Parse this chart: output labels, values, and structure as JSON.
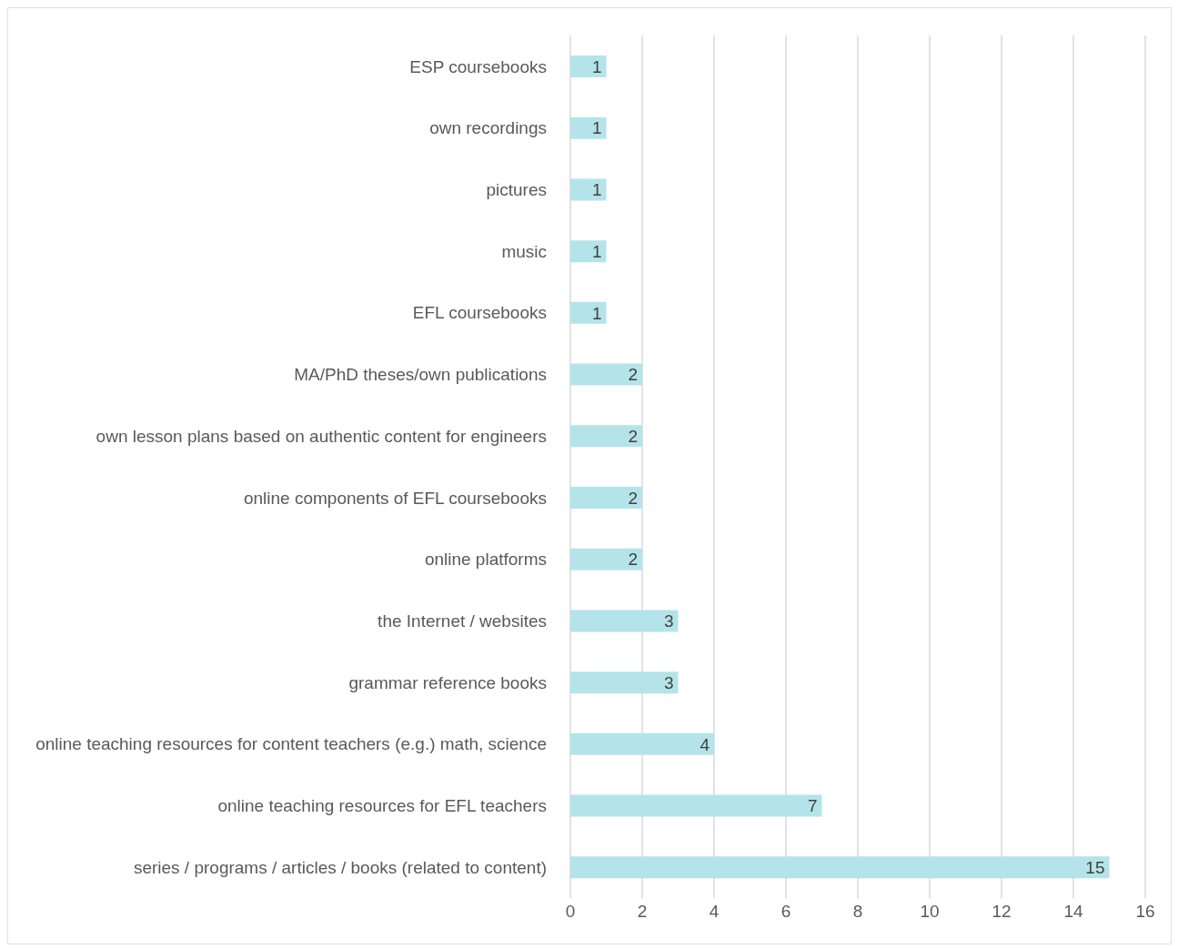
{
  "chart_data": {
    "type": "bar",
    "orientation": "horizontal",
    "categories": [
      "ESP coursebooks",
      "own recordings",
      "pictures",
      "music",
      "EFL coursebooks",
      "MA/PhD theses/own publications",
      "own lesson plans based on authentic content for engineers",
      "online components of EFL coursebooks",
      "online platforms",
      "the Internet / websites",
      "grammar reference books",
      "online  teaching resources for content teachers (e.g.) math, science",
      "online teaching resources for EFL teachers",
      "series / programs / articles / books (related to content)"
    ],
    "values": [
      1,
      1,
      1,
      1,
      1,
      2,
      2,
      2,
      2,
      3,
      3,
      4,
      7,
      15
    ],
    "color": "#b4e4e9",
    "xlim": [
      0,
      16
    ],
    "xticks": [
      0,
      2,
      4,
      6,
      8,
      10,
      12,
      14,
      16
    ],
    "grid": "x",
    "data_labels": true
  }
}
